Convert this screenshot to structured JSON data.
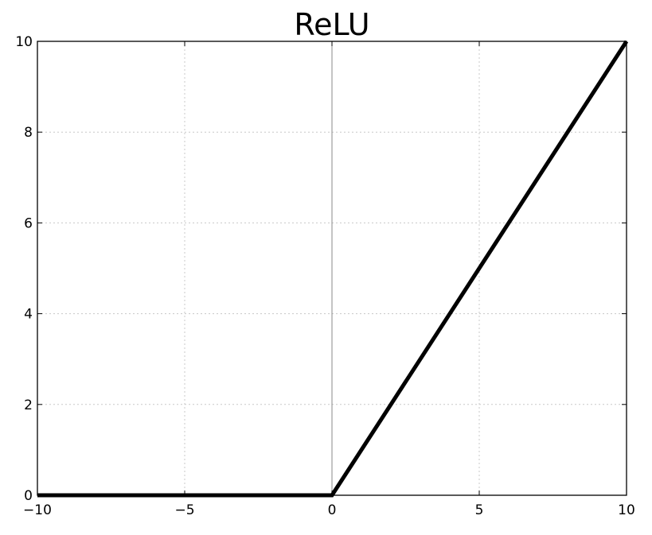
{
  "chart_data": {
    "type": "line",
    "title": "ReLU",
    "xlabel": "",
    "ylabel": "",
    "xlim": [
      -10,
      10
    ],
    "ylim": [
      0,
      10
    ],
    "x_ticks": [
      -10,
      -5,
      0,
      5,
      10
    ],
    "x_tick_labels": [
      "−10",
      "−5",
      "0",
      "5",
      "10"
    ],
    "y_ticks": [
      0,
      2,
      4,
      6,
      8,
      10
    ],
    "y_tick_labels": [
      "0",
      "2",
      "4",
      "6",
      "8",
      "10"
    ],
    "grid": true,
    "vertical_reference_line_x": 0,
    "series": [
      {
        "x": [
          -10,
          0,
          10
        ],
        "y": [
          0,
          0,
          10
        ],
        "color": "#000000"
      }
    ]
  }
}
